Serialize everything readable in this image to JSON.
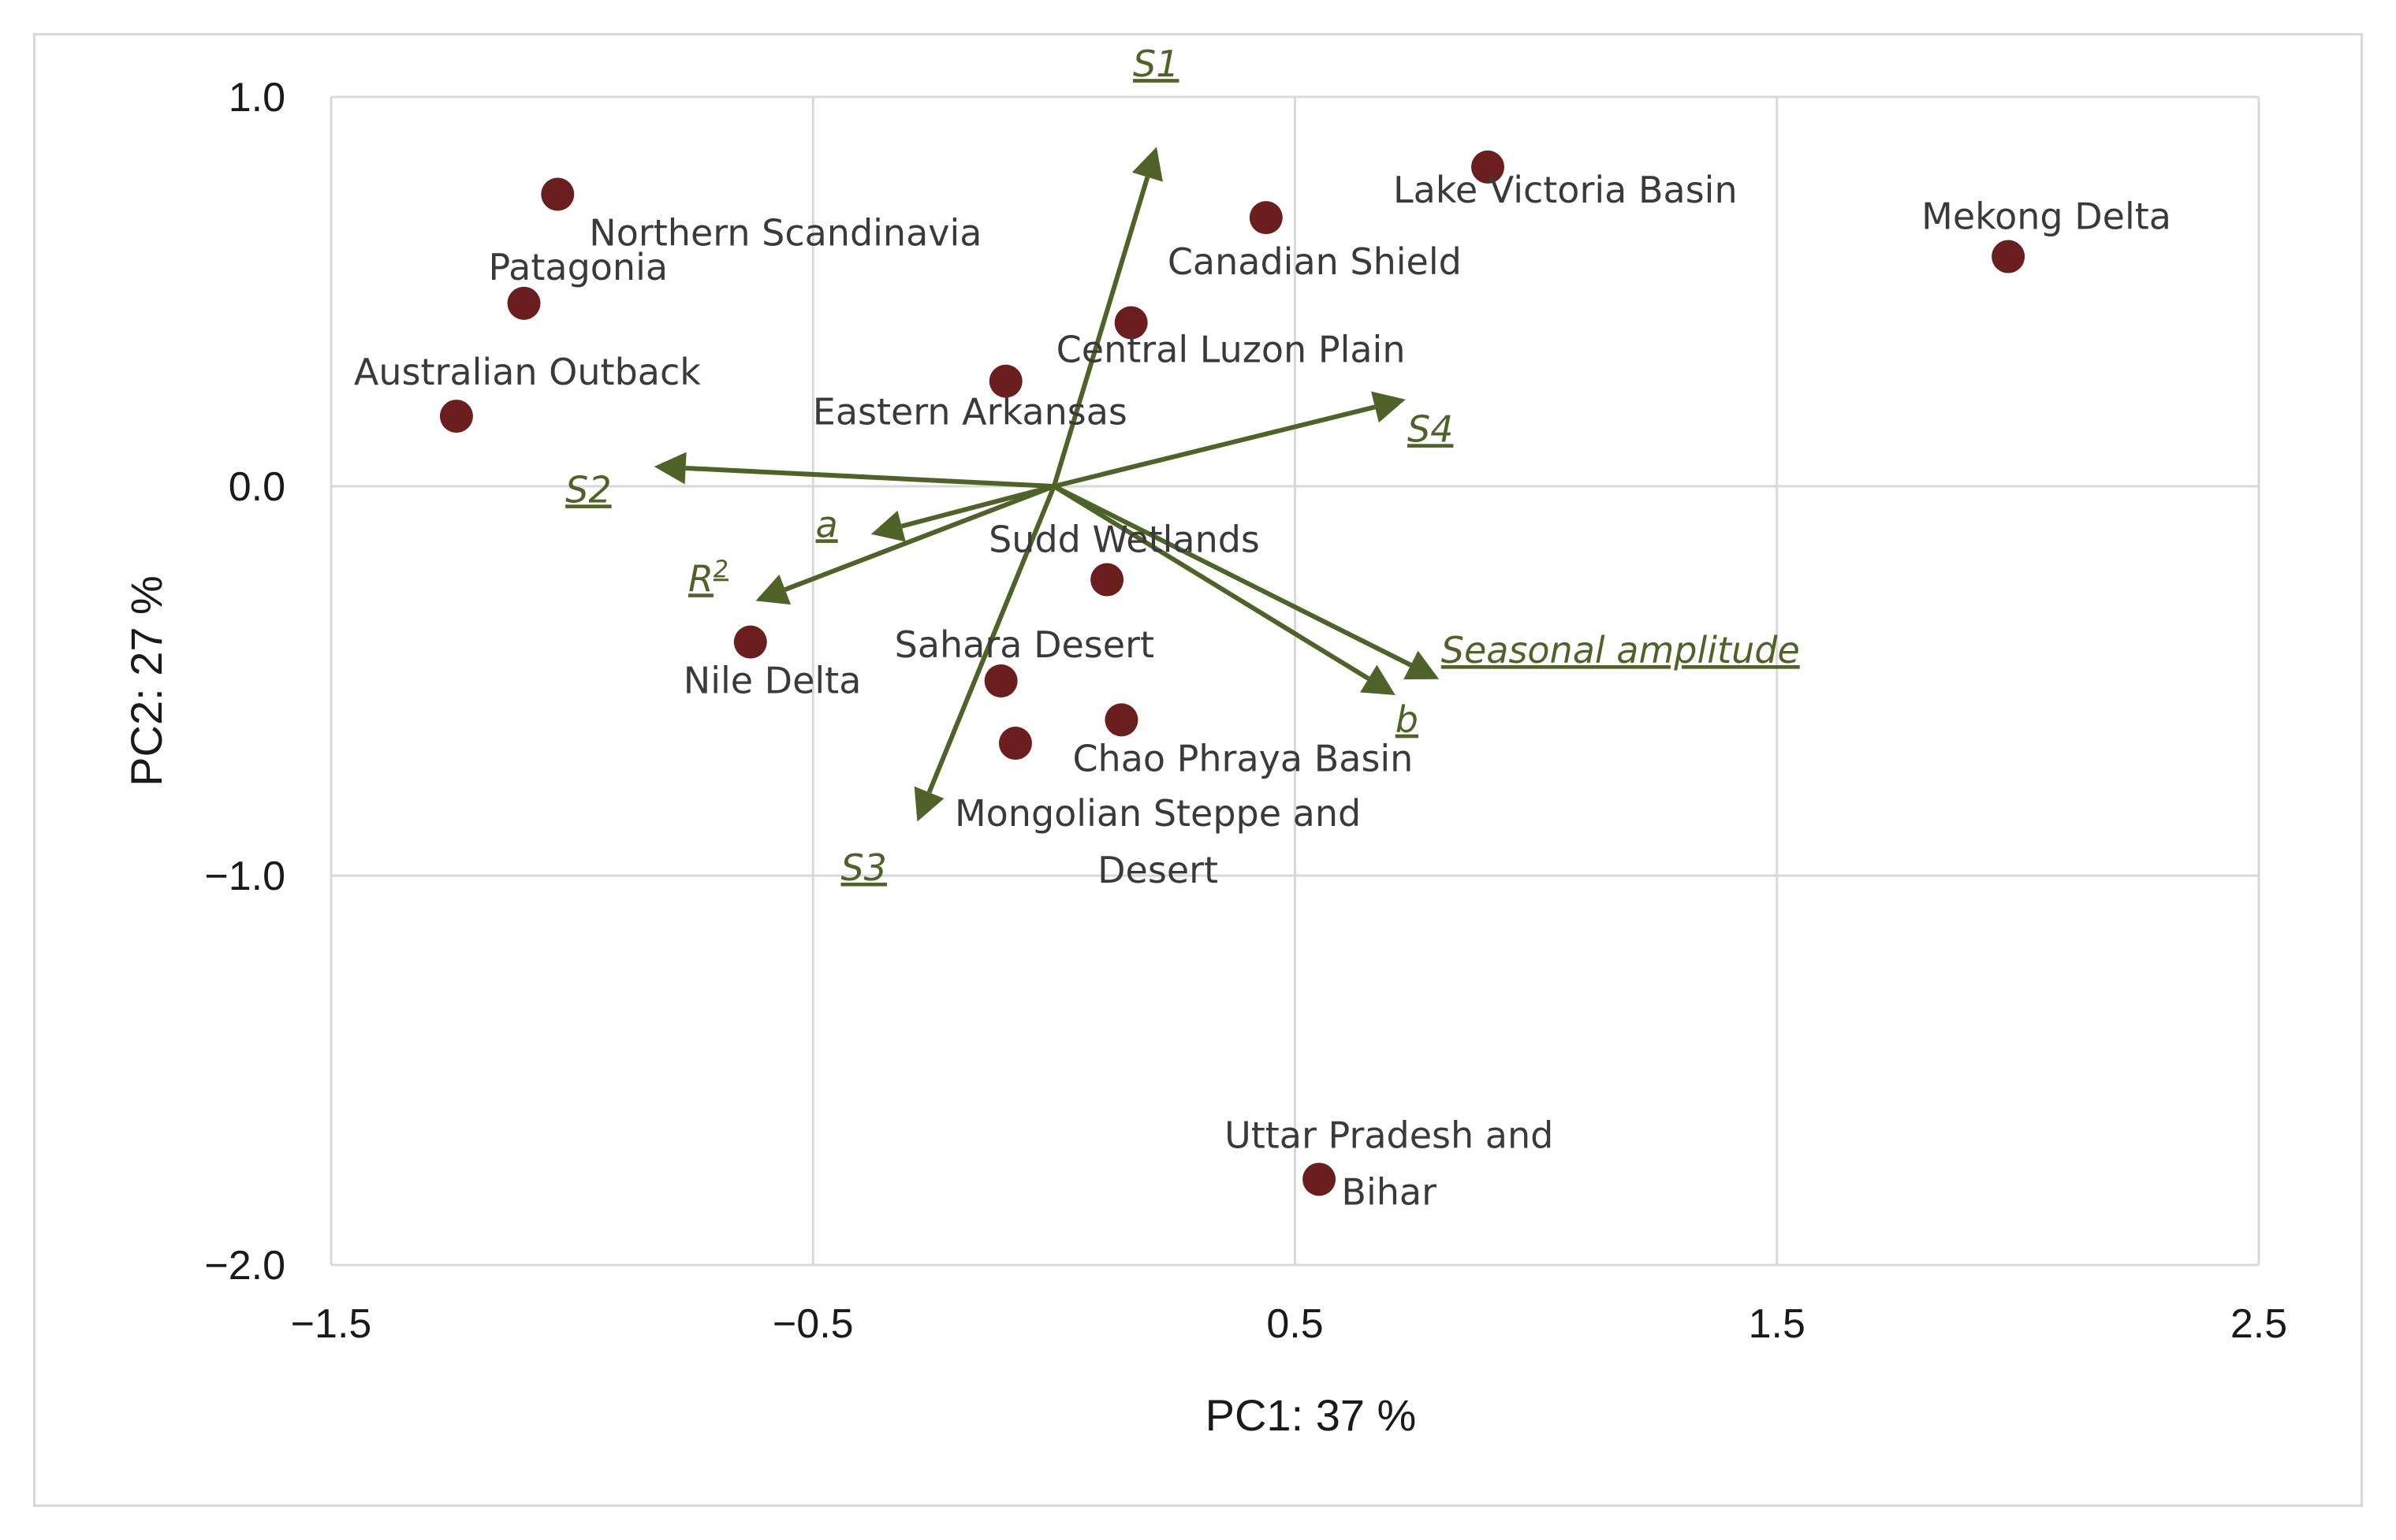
{
  "chart_data": {
    "type": "scatter",
    "subtype": "pca-biplot",
    "title": "",
    "xlabel": "PC1: 37 %",
    "ylabel": "PC2: 27 %",
    "xlim": [
      -1.5,
      2.5
    ],
    "ylim": [
      -2.0,
      1.0
    ],
    "xticks": [
      -1.5,
      -0.5,
      0.5,
      1.5,
      2.5
    ],
    "xtick_labels": [
      "−1.5",
      "−0.5",
      "0.5",
      "1.5",
      "2.5"
    ],
    "yticks": [
      1.0,
      0.0,
      -1.0,
      -2.0
    ],
    "ytick_labels": [
      "1.0",
      "0.0",
      "−1.0",
      "−2.0"
    ],
    "grid": true,
    "colors": {
      "points": "#6b1e1e",
      "vectors": "#4f6228",
      "grid": "#d9d9d9"
    },
    "points": [
      {
        "label": [
          "Northern Scandinavia"
        ],
        "x": -1.03,
        "y": 0.75
      },
      {
        "label": [
          "Patagonia"
        ],
        "x": -1.1,
        "y": 0.47
      },
      {
        "label": [
          "Australian Outback"
        ],
        "x": -1.24,
        "y": 0.18
      },
      {
        "label": [
          "Lake Victoria Basin"
        ],
        "x": 0.9,
        "y": 0.82
      },
      {
        "label": [
          "Canadian Shield"
        ],
        "x": 0.44,
        "y": 0.69
      },
      {
        "label": [
          "Mekong Delta"
        ],
        "x": 1.98,
        "y": 0.59
      },
      {
        "label": [
          "Central Luzon Plain"
        ],
        "x": 0.16,
        "y": 0.42
      },
      {
        "label": [
          "Eastern Arkansas"
        ],
        "x": -0.1,
        "y": 0.27
      },
      {
        "label": [
          "Sudd Wetlands"
        ],
        "x": 0.11,
        "y": -0.24
      },
      {
        "label": [
          "Nile Delta"
        ],
        "x": -0.63,
        "y": -0.4
      },
      {
        "label": [
          "Sahara Desert"
        ],
        "x": -0.11,
        "y": -0.5
      },
      {
        "label": [
          "Chao Phraya Basin"
        ],
        "x": 0.14,
        "y": -0.6
      },
      {
        "label": [
          "Mongolian Steppe and",
          "Desert"
        ],
        "x": -0.08,
        "y": -0.66
      },
      {
        "label": [
          "Uttar Pradesh and",
          "Bihar"
        ],
        "x": 0.55,
        "y": -1.78
      }
    ],
    "vectors": [
      {
        "label": "S1",
        "x": 0.21,
        "y": 0.86
      },
      {
        "label": "S2",
        "x": -0.82,
        "y": 0.05
      },
      {
        "label": "S3",
        "x": -0.28,
        "y": -0.85
      },
      {
        "label": "S4",
        "x": 0.72,
        "y": 0.22
      },
      {
        "label": "a",
        "x": -0.37,
        "y": -0.12
      },
      {
        "label": "R2",
        "x": -0.61,
        "y": -0.29
      },
      {
        "label": "b",
        "x": 0.7,
        "y": -0.53
      },
      {
        "label": "Seasonal amplitude",
        "x": 0.79,
        "y": -0.49
      }
    ]
  }
}
